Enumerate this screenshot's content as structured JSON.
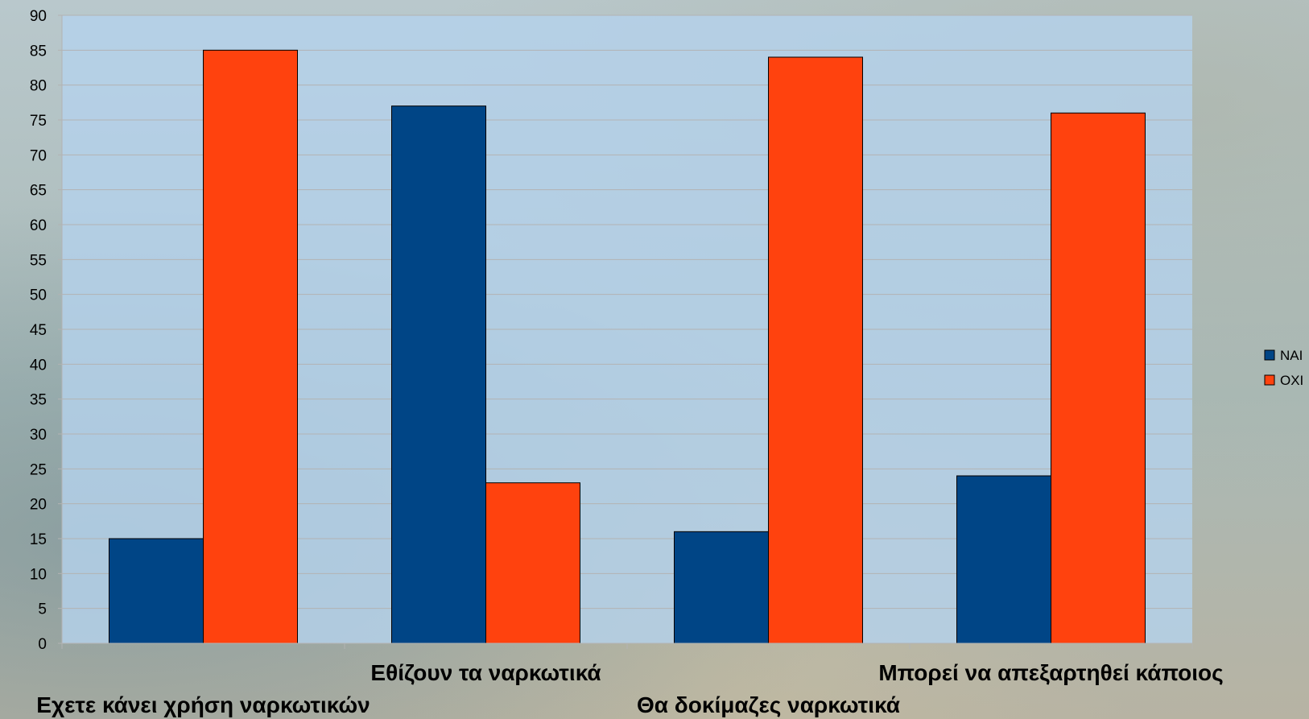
{
  "chart_data": {
    "type": "bar",
    "title": "",
    "xlabel": "",
    "ylabel": "",
    "ylim": [
      0,
      90
    ],
    "ytick_step": 5,
    "grid": true,
    "legend_position": "right",
    "categories": [
      "Εχετε κάνει χρήση ναρκωτικών",
      "Εθίζουν τα ναρκωτικά",
      "Θα δοκίμαζες ναρκωτικά",
      "Μπορεί να απεξαρτηθεί κάποιος"
    ],
    "series": [
      {
        "name": "ΝΑΙ",
        "color": "#004586",
        "values": [
          15,
          77,
          16,
          24
        ]
      },
      {
        "name": "ΟΧΙ",
        "color": "#ff420e",
        "values": [
          85,
          23,
          84,
          76
        ]
      }
    ],
    "plot_background": "#b4d2ec",
    "gridline_color": "#b3b3b3"
  }
}
